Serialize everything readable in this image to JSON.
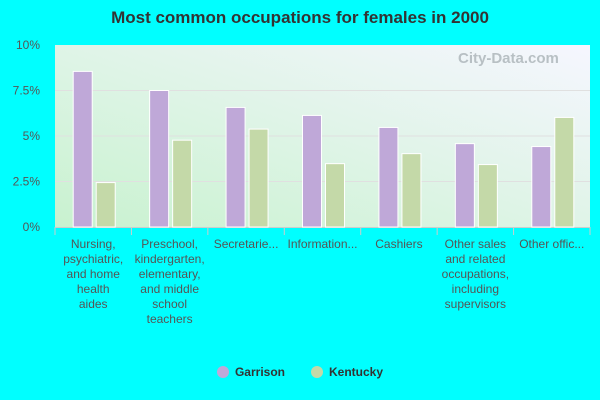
{
  "chart_data": {
    "type": "bar",
    "title": "Most common occupations for females in 2000",
    "categories": [
      [
        "Nursing,",
        "psychiatric,",
        "and home",
        "health",
        "aides"
      ],
      [
        "Preschool,",
        "kindergarten,",
        "elementary,",
        "and middle",
        "school",
        "teachers"
      ],
      [
        "Secretarie..."
      ],
      [
        "Information..."
      ],
      [
        "Cashiers"
      ],
      [
        "Other sales",
        "and related",
        "occupations,",
        "including",
        "supervisors"
      ],
      [
        "Other offic..."
      ]
    ],
    "series": [
      {
        "name": "Garrison",
        "color": "#bfa8d8",
        "values": [
          8.55,
          7.5,
          6.57,
          6.13,
          5.47,
          4.58,
          4.42
        ]
      },
      {
        "name": "Kentucky",
        "color": "#c4d9a8",
        "values": [
          2.44,
          4.77,
          5.38,
          3.48,
          4.03,
          3.43,
          6.02
        ]
      }
    ],
    "yticks": [
      "0%",
      "2.5%",
      "5%",
      "7.5%",
      "10%"
    ],
    "ylim": [
      0,
      10
    ],
    "grid": true,
    "legend": "bottom"
  },
  "watermark": "City-Data.com"
}
